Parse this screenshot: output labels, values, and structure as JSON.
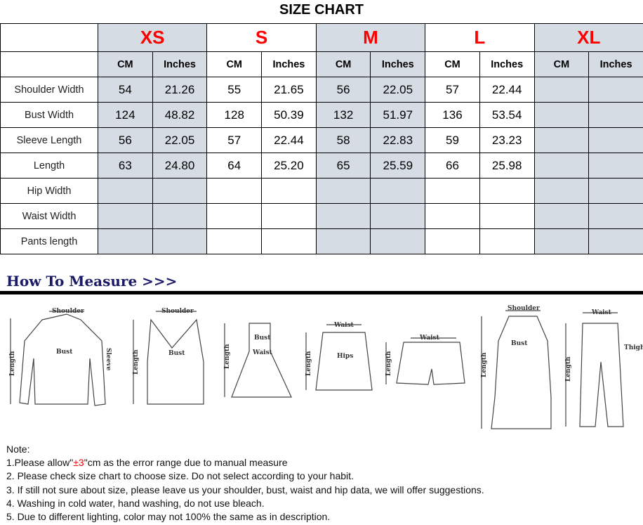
{
  "title": "SIZE CHART",
  "sizes": [
    "XS",
    "S",
    "M",
    "L",
    "XL"
  ],
  "units": {
    "cm": "CM",
    "inches": "Inches"
  },
  "rows": [
    {
      "label": "Shoulder Width",
      "values": [
        "54",
        "21.26",
        "55",
        "21.65",
        "56",
        "22.05",
        "57",
        "22.44",
        "",
        ""
      ]
    },
    {
      "label": "Bust Width",
      "values": [
        "124",
        "48.82",
        "128",
        "50.39",
        "132",
        "51.97",
        "136",
        "53.54",
        "",
        ""
      ]
    },
    {
      "label": "Sleeve Length",
      "values": [
        "56",
        "22.05",
        "57",
        "22.44",
        "58",
        "22.83",
        "59",
        "23.23",
        "",
        ""
      ]
    },
    {
      "label": "Length",
      "values": [
        "63",
        "24.80",
        "64",
        "25.20",
        "65",
        "25.59",
        "66",
        "25.98",
        "",
        ""
      ]
    },
    {
      "label": "Hip Width",
      "values": [
        "",
        "",
        "",
        "",
        "",
        "",
        "",
        "",
        "",
        ""
      ]
    },
    {
      "label": "Waist Width",
      "values": [
        "",
        "",
        "",
        "",
        "",
        "",
        "",
        "",
        "",
        ""
      ]
    },
    {
      "label": "Pants length",
      "values": [
        "",
        "",
        "",
        "",
        "",
        "",
        "",
        "",
        "",
        ""
      ]
    }
  ],
  "how_to_measure": "How To Measure >>>",
  "diagram_labels": {
    "shoulder": "Shoulder",
    "bust": "Bust",
    "sleeve": "Sleeve",
    "length": "Length",
    "waist": "Waist",
    "hips": "Hips",
    "thigh": "Thigh"
  },
  "notes": {
    "heading": "Note:",
    "n1_pre": "1.Please allow\"",
    "n1_red": "±3",
    "n1_post": "\"cm as the error range due to manual measure",
    "n2": "2. Please check size chart to choose size. Do not select according to your habit.",
    "n3": "3. If still not sure about size, please leave us your shoulder, bust, waist and hip data, we will offer suggestions.",
    "n4": "4. Washing in cold water, hand washing, do not use bleach.",
    "n5": "5. Due to different lighting, color may not 100% the same as in description."
  }
}
